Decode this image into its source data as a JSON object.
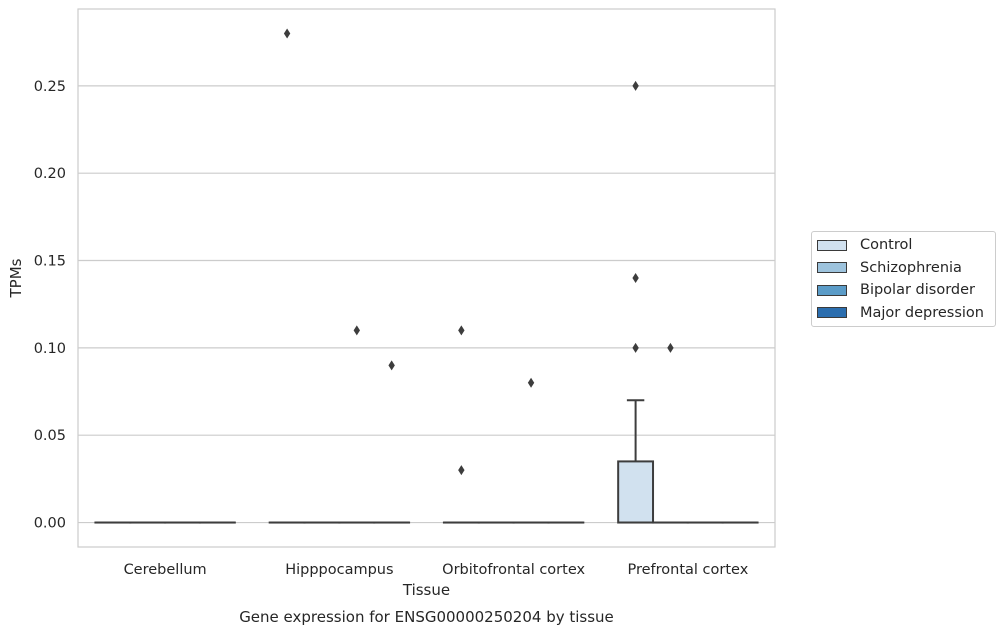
{
  "chart_data": {
    "type": "box",
    "xlabel": "Tissue",
    "ylabel": "TPMs",
    "caption": "Gene expression for ENSG00000250204 by tissue",
    "categories": [
      "Cerebellum",
      "Hipppocampus",
      "Orbitofrontal cortex",
      "Prefrontal cortex"
    ],
    "ylim": [
      -0.014,
      0.294
    ],
    "yticks": [
      0.0,
      0.05,
      0.1,
      0.15,
      0.2,
      0.25
    ],
    "ytick_labels": [
      "0.00",
      "0.05",
      "0.10",
      "0.15",
      "0.20",
      "0.25"
    ],
    "grid": true,
    "legend_position": "right",
    "series": [
      {
        "name": "Control",
        "color": "#d1e1ef",
        "boxes": [
          {
            "category": "Cerebellum",
            "whisker_low": 0,
            "q1": 0,
            "median": 0,
            "q3": 0,
            "whisker_high": 0,
            "outliers": []
          },
          {
            "category": "Hipppocampus",
            "whisker_low": 0,
            "q1": 0,
            "median": 0,
            "q3": 0,
            "whisker_high": 0,
            "outliers": [
              0.28
            ]
          },
          {
            "category": "Orbitofrontal cortex",
            "whisker_low": 0,
            "q1": 0,
            "median": 0,
            "q3": 0,
            "whisker_high": 0,
            "outliers": [
              0.11,
              0.03
            ]
          },
          {
            "category": "Prefrontal cortex",
            "whisker_low": 0,
            "q1": 0,
            "median": 0,
            "q3": 0.035,
            "whisker_high": 0.07,
            "outliers": [
              0.25,
              0.14,
              0.1
            ]
          }
        ]
      },
      {
        "name": "Schizophrenia",
        "color": "#9dc3dd",
        "boxes": [
          {
            "category": "Cerebellum",
            "whisker_low": 0,
            "q1": 0,
            "median": 0,
            "q3": 0,
            "whisker_high": 0,
            "outliers": []
          },
          {
            "category": "Hipppocampus",
            "whisker_low": 0,
            "q1": 0,
            "median": 0,
            "q3": 0,
            "whisker_high": 0,
            "outliers": []
          },
          {
            "category": "Orbitofrontal cortex",
            "whisker_low": 0,
            "q1": 0,
            "median": 0,
            "q3": 0,
            "whisker_high": 0,
            "outliers": []
          },
          {
            "category": "Prefrontal cortex",
            "whisker_low": 0,
            "q1": 0,
            "median": 0,
            "q3": 0,
            "whisker_high": 0,
            "outliers": [
              0.1
            ]
          }
        ]
      },
      {
        "name": "Bipolar disorder",
        "color": "#5b9cc8",
        "boxes": [
          {
            "category": "Cerebellum",
            "whisker_low": 0,
            "q1": 0,
            "median": 0,
            "q3": 0,
            "whisker_high": 0,
            "outliers": []
          },
          {
            "category": "Hipppocampus",
            "whisker_low": 0,
            "q1": 0,
            "median": 0,
            "q3": 0,
            "whisker_high": 0,
            "outliers": [
              0.11
            ]
          },
          {
            "category": "Orbitofrontal cortex",
            "whisker_low": 0,
            "q1": 0,
            "median": 0,
            "q3": 0,
            "whisker_high": 0,
            "outliers": [
              0.08
            ]
          },
          {
            "category": "Prefrontal cortex",
            "whisker_low": 0,
            "q1": 0,
            "median": 0,
            "q3": 0,
            "whisker_high": 0,
            "outliers": []
          }
        ]
      },
      {
        "name": "Major depression",
        "color": "#2b6eaf",
        "boxes": [
          {
            "category": "Cerebellum",
            "whisker_low": 0,
            "q1": 0,
            "median": 0,
            "q3": 0,
            "whisker_high": 0,
            "outliers": []
          },
          {
            "category": "Hipppocampus",
            "whisker_low": 0,
            "q1": 0,
            "median": 0,
            "q3": 0,
            "whisker_high": 0,
            "outliers": [
              0.09
            ]
          },
          {
            "category": "Orbitofrontal cortex",
            "whisker_low": 0,
            "q1": 0,
            "median": 0,
            "q3": 0,
            "whisker_high": 0,
            "outliers": []
          },
          {
            "category": "Prefrontal cortex",
            "whisker_low": 0,
            "q1": 0,
            "median": 0,
            "q3": 0,
            "whisker_high": 0,
            "outliers": []
          }
        ]
      }
    ]
  }
}
